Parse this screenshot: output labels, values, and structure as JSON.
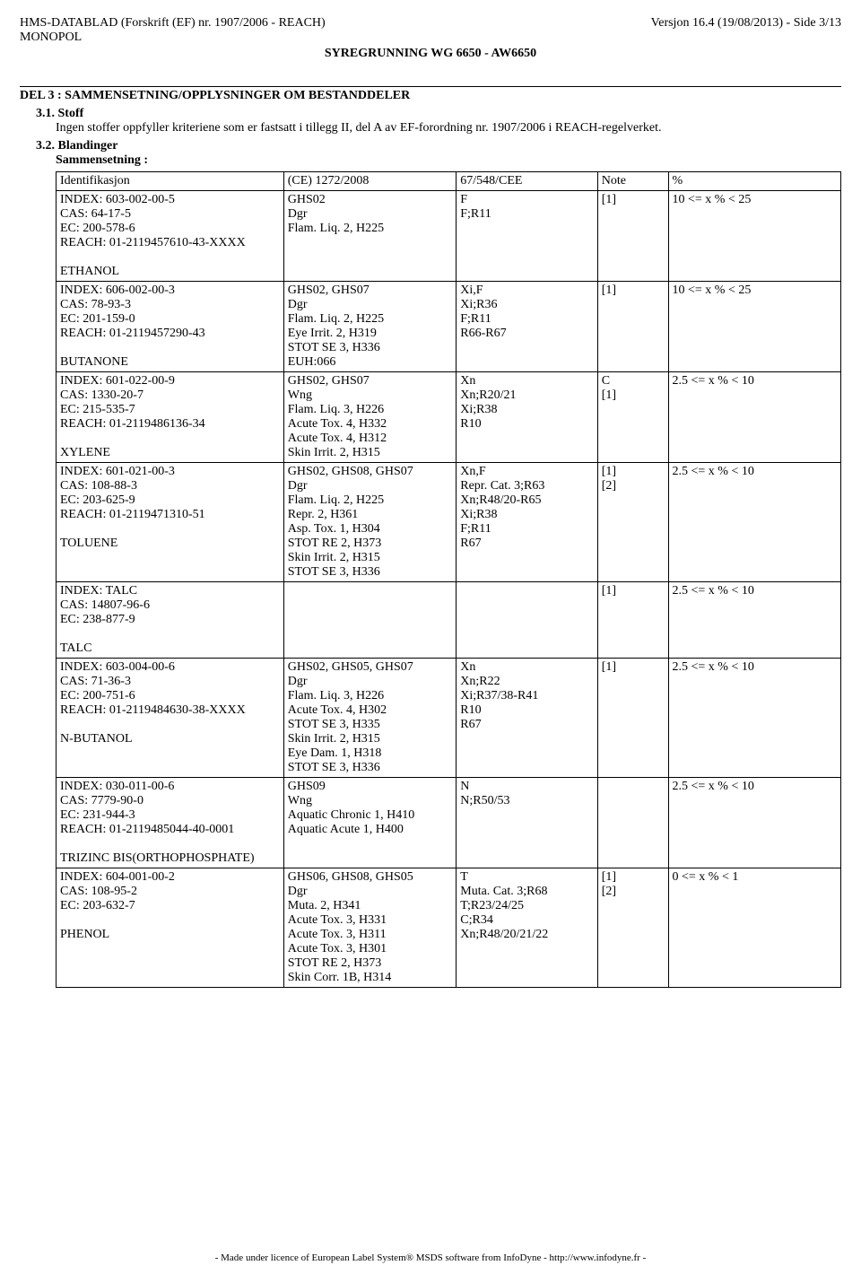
{
  "header": {
    "left1": "HMS-DATABLAD (Forskrift (EF) nr. 1907/2006 - REACH)",
    "left2": "MONOPOL",
    "right": "Versjon 16.4 (19/08/2013) - Side 3/13",
    "center": "SYREGRUNNING WG 6650 - AW6650"
  },
  "section3": {
    "title": "DEL 3 : SAMMENSETNING/OPPLYSNINGER OM BESTANDDELER",
    "stoff_label": "3.1. Stoff",
    "stoff_text": "Ingen stoffer oppfyller kriteriene som er fastsatt i tillegg II, del A av EF-forordning nr. 1907/2006 i REACH-regelverket.",
    "bland_label": "3.2. Blandinger",
    "sammen_label": "Sammensetning :"
  },
  "th": {
    "id": "Identifikasjon",
    "ce": "(CE) 1272/2008",
    "cee": "67/548/CEE",
    "note": "Note",
    "pct": "%"
  },
  "rows": [
    {
      "id": "INDEX: 603-002-00-5\nCAS: 64-17-5\nEC: 200-578-6\nREACH: 01-2119457610-43-XXXX\n\nETHANOL",
      "ce": "GHS02\nDgr\nFlam. Liq. 2, H225",
      "cee": "F\nF;R11",
      "note": "[1]",
      "pct": "10 <= x % < 25"
    },
    {
      "id": "INDEX: 606-002-00-3\nCAS: 78-93-3\nEC: 201-159-0\nREACH: 01-2119457290-43\n\nBUTANONE",
      "ce": "GHS02, GHS07\nDgr\nFlam. Liq. 2, H225\nEye Irrit. 2, H319\nSTOT SE 3, H336\nEUH:066",
      "cee": "Xi,F\nXi;R36\nF;R11\nR66-R67",
      "note": "[1]",
      "pct": "10 <= x % < 25"
    },
    {
      "id": "INDEX: 601-022-00-9\nCAS: 1330-20-7\nEC: 215-535-7\nREACH: 01-2119486136-34\n\nXYLENE",
      "ce": "GHS02, GHS07\nWng\nFlam. Liq. 3, H226\nAcute Tox. 4, H332\nAcute Tox. 4, H312\nSkin Irrit. 2, H315",
      "cee": "Xn\nXn;R20/21\nXi;R38\nR10",
      "note": "C\n[1]",
      "pct": "2.5 <= x % < 10"
    },
    {
      "id": "INDEX: 601-021-00-3\nCAS: 108-88-3\nEC: 203-625-9\nREACH: 01-2119471310-51\n\nTOLUENE",
      "ce": "GHS02, GHS08, GHS07\nDgr\nFlam. Liq. 2, H225\nRepr. 2, H361\nAsp. Tox. 1, H304\nSTOT RE 2, H373\nSkin Irrit. 2, H315\nSTOT SE 3, H336",
      "cee": "Xn,F\nRepr. Cat. 3;R63\nXn;R48/20-R65\nXi;R38\nF;R11\nR67",
      "note": "[1]\n[2]",
      "pct": "2.5 <= x % < 10"
    },
    {
      "id": "INDEX: TALC\nCAS: 14807-96-6\nEC: 238-877-9\n\nTALC",
      "ce": "",
      "cee": "",
      "note": "[1]",
      "pct": "2.5 <= x % < 10"
    },
    {
      "id": "INDEX: 603-004-00-6\nCAS: 71-36-3\nEC: 200-751-6\nREACH: 01-2119484630-38-XXXX\n\nN-BUTANOL",
      "ce": "GHS02, GHS05, GHS07\nDgr\nFlam. Liq. 3, H226\nAcute Tox. 4, H302\nSTOT SE 3, H335\nSkin Irrit. 2, H315\nEye Dam. 1, H318\nSTOT SE 3, H336",
      "cee": "Xn\nXn;R22\nXi;R37/38-R41\nR10\nR67",
      "note": "[1]",
      "pct": "2.5 <= x % < 10"
    },
    {
      "id": "INDEX: 030-011-00-6\nCAS: 7779-90-0\nEC: 231-944-3\nREACH: 01-2119485044-40-0001\n\nTRIZINC BIS(ORTHOPHOSPHATE)",
      "ce": "GHS09\nWng\nAquatic Chronic 1, H410\nAquatic Acute 1, H400",
      "cee": "N\nN;R50/53",
      "note": "",
      "pct": "2.5 <= x % < 10"
    },
    {
      "id": "INDEX: 604-001-00-2\nCAS: 108-95-2\nEC: 203-632-7\n\nPHENOL",
      "ce": "GHS06, GHS08, GHS05\nDgr\nMuta. 2, H341\nAcute Tox. 3, H331\nAcute Tox. 3, H311\nAcute Tox. 3, H301\nSTOT RE 2, H373\nSkin Corr. 1B, H314",
      "cee": "T\nMuta. Cat. 3;R68\nT;R23/24/25\nC;R34\nXn;R48/20/21/22",
      "note": "[1]\n[2]",
      "pct": "0 <= x % < 1"
    }
  ],
  "footer": "- Made under licence of European Label System® MSDS software from InfoDyne  - http://www.infodyne.fr -"
}
